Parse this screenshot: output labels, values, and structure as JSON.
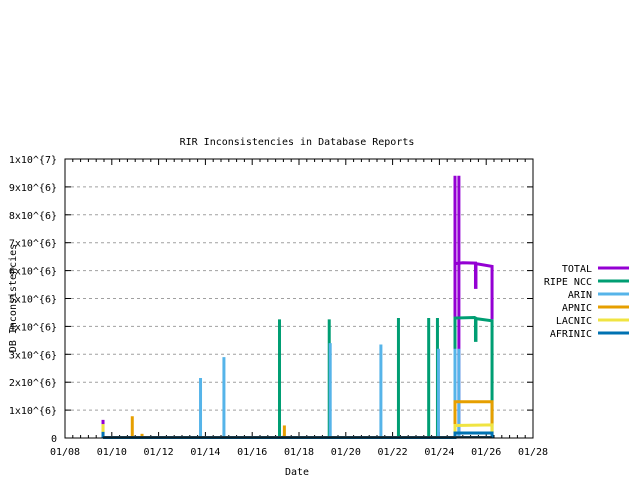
{
  "chart_data": {
    "type": "line",
    "title": "RIR Inconsistencies in Database Reports",
    "xlabel": "Date",
    "ylabel": "DB Inconsistencies",
    "xlim": [
      "01/08 00:00",
      "01/28 00:00"
    ],
    "ylim": [
      0,
      10
    ],
    "y_unit_note_scale": 1000000,
    "x_ticks": [
      "01/08",
      "01/10",
      "01/12",
      "01/14",
      "01/16",
      "01/18",
      "01/20",
      "01/22",
      "01/24",
      "01/26",
      "01/28"
    ],
    "y_ticks": [
      "0",
      "1x10^{6}",
      "2x10^{6}",
      "3x10^{6}",
      "4x10^{6}",
      "5x10^{6}",
      "6x10^{6}",
      "7x10^{6}",
      "8x10^{6}",
      "9x10^{6}",
      "1x10^{7}"
    ],
    "grid": "horizontal dashed",
    "legend_position": "right",
    "series": [
      {
        "name": "TOTAL",
        "color": "#9400d3",
        "impulses": [
          [
            "01/09 15:00",
            0.65
          ],
          [
            "01/24 16:00",
            9.4
          ],
          [
            "01/24 20:00",
            9.4
          ]
        ],
        "line": [
          [
            "01/24 16:00",
            4.3
          ],
          [
            "01/24 16:00",
            6.25
          ],
          [
            "01/25 00:00",
            6.28
          ],
          [
            "01/25 13:00",
            6.27
          ],
          [
            "01/25 13:00",
            5.4
          ],
          [
            "01/25 13:30",
            5.4
          ],
          [
            "01/25 13:30",
            6.25
          ],
          [
            "01/26 06:00",
            6.15
          ],
          [
            "01/26 06:00",
            4.25
          ]
        ]
      },
      {
        "name": "RIPE NCC",
        "color": "#009e73",
        "impulses": [
          [
            "01/17 04:00",
            4.25
          ],
          [
            "01/19 07:00",
            4.25
          ],
          [
            "01/22 06:00",
            4.3
          ],
          [
            "01/23 13:00",
            4.3
          ],
          [
            "01/23 22:00",
            4.3
          ]
        ],
        "line": [
          [
            "01/24 16:00",
            3.2
          ],
          [
            "01/24 16:00",
            4.3
          ],
          [
            "01/25 12:00",
            4.32
          ],
          [
            "01/25 13:00",
            4.3
          ],
          [
            "01/25 13:00",
            3.5
          ],
          [
            "01/25 13:30",
            3.5
          ],
          [
            "01/25 13:30",
            4.28
          ],
          [
            "01/26 06:00",
            4.2
          ],
          [
            "01/26 06:00",
            0.2
          ]
        ]
      },
      {
        "name": "ARIN",
        "color": "#56b4e9",
        "impulses": [
          [
            "01/13 19:00",
            2.15
          ],
          [
            "01/14 19:00",
            2.9
          ],
          [
            "01/19 08:00",
            3.4
          ],
          [
            "01/21 12:00",
            3.35
          ],
          [
            "01/23 23:00",
            3.2
          ],
          [
            "01/24 16:00",
            3.2
          ],
          [
            "01/24 20:00",
            3.2
          ]
        ],
        "line": []
      },
      {
        "name": "APNIC",
        "color": "#e69f00",
        "impulses": [
          [
            "01/10 21:00",
            0.78
          ],
          [
            "01/11 07:00",
            0.15
          ],
          [
            "01/17 09:00",
            0.45
          ]
        ],
        "line": [
          [
            "01/24 16:00",
            0.5
          ],
          [
            "01/24 16:00",
            1.3
          ],
          [
            "01/26 06:00",
            1.3
          ],
          [
            "01/26 06:00",
            0.45
          ]
        ]
      },
      {
        "name": "LACNIC",
        "color": "#f0e442",
        "impulses": [
          [
            "01/09 15:00",
            0.5
          ],
          [
            "01/11 12:00",
            0.06
          ]
        ],
        "line": [
          [
            "01/24 16:00",
            0.18
          ],
          [
            "01/24 16:00",
            0.45
          ],
          [
            "01/26 06:00",
            0.47
          ],
          [
            "01/26 06:00",
            0.18
          ]
        ]
      },
      {
        "name": "AFRINIC",
        "color": "#0072b2",
        "impulses": [
          [
            "01/09 15:00",
            0.22
          ],
          [
            "01/10 06:00",
            0.07
          ]
        ],
        "line": [
          [
            "01/09 15:00",
            0.02
          ],
          [
            "01/24 16:00",
            0.02
          ],
          [
            "01/24 16:00",
            0.18
          ],
          [
            "01/26 06:00",
            0.18
          ],
          [
            "01/26 06:00",
            0.02
          ]
        ]
      }
    ]
  }
}
